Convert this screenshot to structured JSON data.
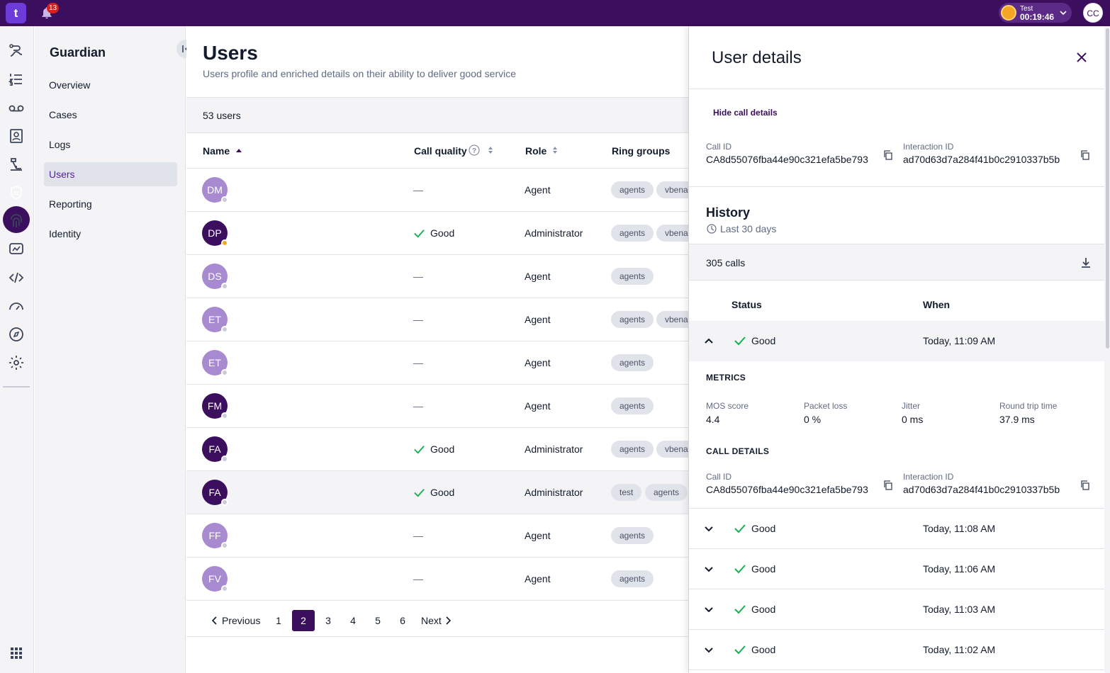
{
  "topbar": {
    "logo": "t",
    "notifications_count": "13",
    "account_label": "Test",
    "timer": "00:19:46",
    "user_initials": "CC"
  },
  "sidenav": {
    "title": "Guardian",
    "items": [
      {
        "label": "Overview"
      },
      {
        "label": "Cases"
      },
      {
        "label": "Logs"
      },
      {
        "label": "Users"
      },
      {
        "label": "Reporting"
      },
      {
        "label": "Identity"
      }
    ]
  },
  "main": {
    "title": "Users",
    "subtitle": "Users profile and enriched details on their ability to deliver good service",
    "count": "53 users",
    "columns": {
      "name": "Name",
      "call_quality": "Call quality",
      "role": "Role",
      "ring_groups": "Ring groups"
    },
    "rows": [
      {
        "initials": "DM",
        "call_quality": "—",
        "role": "Agent",
        "tags": [
          "agents",
          "vbena"
        ]
      },
      {
        "initials": "DP",
        "call_quality": "Good",
        "role": "Administrator",
        "tags": [
          "agents",
          "vbena"
        ]
      },
      {
        "initials": "DS",
        "call_quality": "—",
        "role": "Agent",
        "tags": [
          "agents"
        ]
      },
      {
        "initials": "ET",
        "call_quality": "—",
        "role": "Agent",
        "tags": [
          "agents",
          "vbena"
        ]
      },
      {
        "initials": "ET",
        "call_quality": "—",
        "role": "Agent",
        "tags": [
          "agents"
        ]
      },
      {
        "initials": "FM",
        "call_quality": "—",
        "role": "Agent",
        "tags": [
          "agents"
        ]
      },
      {
        "initials": "FA",
        "call_quality": "Good",
        "role": "Administrator",
        "tags": [
          "agents",
          "vbena"
        ]
      },
      {
        "initials": "FA",
        "call_quality": "Good",
        "role": "Administrator",
        "tags": [
          "test",
          "agents"
        ]
      },
      {
        "initials": "FF",
        "call_quality": "—",
        "role": "Agent",
        "tags": [
          "agents"
        ]
      },
      {
        "initials": "FV",
        "call_quality": "—",
        "role": "Agent",
        "tags": [
          "agents"
        ]
      }
    ],
    "pagination": {
      "previous": "Previous",
      "next": "Next",
      "pages": [
        "1",
        "2",
        "3",
        "4",
        "5",
        "6"
      ],
      "current": "2"
    }
  },
  "panel": {
    "title": "User details",
    "hide_link": "Hide call details",
    "call_id_label": "Call ID",
    "call_id": "CA8d55076fba44e90c321efa5be793",
    "interaction_id_label": "Interaction ID",
    "interaction_id": "ad70d63d7a284f41b0c2910337b5b",
    "history_title": "History",
    "history_range": "Last 30 days",
    "calls_count": "305 calls",
    "col_status": "Status",
    "col_when": "When",
    "expanded": {
      "status": "Good",
      "when": "Today, 11:09 AM"
    },
    "metrics_title": "METRICS",
    "metrics": [
      {
        "label": "MOS score",
        "value": "4.4"
      },
      {
        "label": "Packet loss",
        "value": "0 %"
      },
      {
        "label": "Jitter",
        "value": "0 ms"
      },
      {
        "label": "Round trip time",
        "value": "37.9 ms"
      }
    ],
    "call_details_title": "CALL DETAILS",
    "history_rows": [
      {
        "status": "Good",
        "when": "Today, 11:08 AM"
      },
      {
        "status": "Good",
        "when": "Today, 11:06 AM"
      },
      {
        "status": "Good",
        "when": "Today, 11:03 AM"
      },
      {
        "status": "Good",
        "when": "Today, 11:02 AM"
      }
    ]
  },
  "colors": {
    "brand": "#3b0e5e",
    "good": "#14b053",
    "avatar_light": "#a88ad0",
    "avatar_dark": "#3b0e5e"
  }
}
